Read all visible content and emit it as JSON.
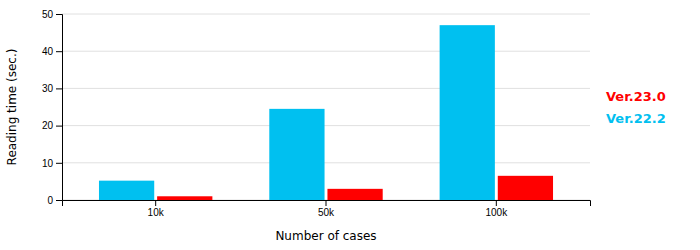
{
  "chart_data": {
    "type": "bar",
    "categories": [
      "10k",
      "50k",
      "100k"
    ],
    "series": [
      {
        "name": "Ver.22.2",
        "color": "#00c0f0",
        "values": [
          5.2,
          24.5,
          47.0
        ]
      },
      {
        "name": "Ver.23.0",
        "color": "#ff0000",
        "values": [
          1.0,
          3.0,
          6.5
        ]
      }
    ],
    "xlabel": "Number of cases",
    "ylabel": "Reading time (sec.)",
    "ylim": [
      0,
      50
    ],
    "yticks": [
      0,
      10,
      20,
      30,
      40,
      50
    ],
    "grid": true,
    "legend": "right"
  }
}
